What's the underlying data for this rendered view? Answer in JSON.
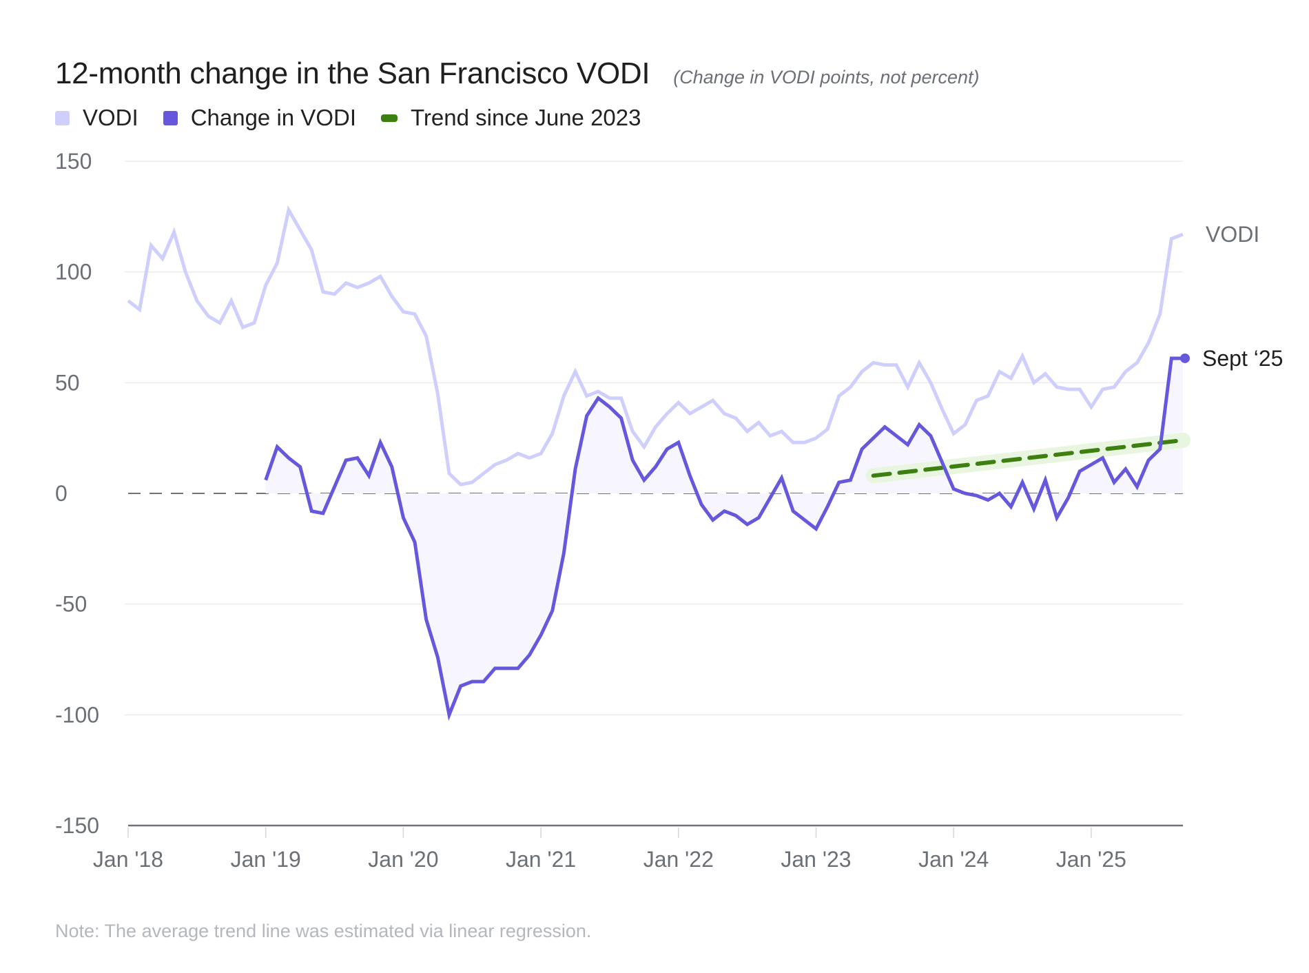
{
  "header": {
    "title": "12-month change in the San Francisco VODI",
    "subtitle": "(Change in VODI points, not percent)"
  },
  "legend": [
    {
      "label": "VODI",
      "color": "#cfcffd"
    },
    {
      "label": "Change in VODI",
      "color": "#6558dd"
    },
    {
      "label": "Trend since June 2023",
      "color": "#3d7f10"
    }
  ],
  "note": "Note: The average trend line was estimated via linear regression.",
  "chart_data": {
    "type": "line",
    "title": "12-month change in the San Francisco VODI",
    "subtitle": "(Change in VODI points, not percent)",
    "xlabel": "",
    "ylabel": "",
    "ylim": [
      -150,
      150
    ],
    "yticks": [
      150,
      100,
      50,
      0,
      -50,
      -100,
      -150
    ],
    "ytick_labels": [
      "150",
      "100",
      "50",
      "0",
      "-50",
      "-100",
      "-150"
    ],
    "xtick_labels": [
      "Jan '18",
      "Jan '19",
      "Jan '20",
      "Jan '21",
      "Jan '22",
      "Jan '23",
      "Jan '24",
      "Jan '25"
    ],
    "x_start": "Jan 2018",
    "x_end": "Sept 2025",
    "grid": true,
    "zero_line": "dashed",
    "legend_position": "top-left",
    "series": [
      {
        "name": "VODI",
        "color": "#cfcffd",
        "start_month_index": 0,
        "values": [
          87,
          83,
          112,
          106,
          118,
          100,
          87,
          80,
          77,
          87,
          75,
          77,
          94,
          104,
          128,
          119,
          110,
          91,
          90,
          95,
          93,
          95,
          98,
          89,
          82,
          81,
          71,
          45,
          9,
          4,
          5,
          9,
          13,
          15,
          18,
          16,
          18,
          27,
          44,
          55,
          44,
          46,
          43,
          43,
          28,
          21,
          30,
          36,
          41,
          36,
          39,
          42,
          36,
          34,
          28,
          32,
          26,
          28,
          23,
          23,
          25,
          29,
          44,
          48,
          55,
          59,
          58,
          58,
          48,
          59,
          50,
          38,
          27,
          31,
          42,
          44,
          55,
          52,
          62,
          50,
          54,
          48,
          47,
          47,
          39,
          47,
          48,
          55,
          59,
          68,
          81,
          115,
          117
        ],
        "end_label": "VODI"
      },
      {
        "name": "Change in VODI",
        "color": "#6558dd",
        "fill": "#f7f6fe",
        "start_month_index": 12,
        "values": [
          6,
          21,
          16,
          12,
          -8,
          -9,
          3,
          15,
          16,
          8,
          23,
          12,
          -11,
          -22,
          -57,
          -74,
          -100,
          -87,
          -85,
          -85,
          -79,
          -79,
          -79,
          -73,
          -64,
          -53,
          -27,
          11,
          35,
          43,
          39,
          34,
          15,
          6,
          12,
          20,
          23,
          8,
          -5,
          -12,
          -8,
          -10,
          -14,
          -11,
          -2,
          7,
          -8,
          -12,
          -16,
          -6,
          5,
          6,
          20,
          25,
          30,
          26,
          22,
          31,
          26,
          14,
          2,
          0,
          -1,
          -3,
          0,
          -6,
          5,
          -7,
          6,
          -11,
          -2,
          10,
          13,
          16,
          5,
          11,
          3,
          15,
          20,
          61,
          61
        ],
        "end_label": "Sept ‘25",
        "end_value": 61
      },
      {
        "name": "Trend since June 2023",
        "color": "#3d7f10",
        "style": "dashed",
        "start": {
          "month": "June 2023",
          "value": 8
        },
        "end": {
          "month": "Sept 2025",
          "value": 24
        }
      }
    ]
  }
}
